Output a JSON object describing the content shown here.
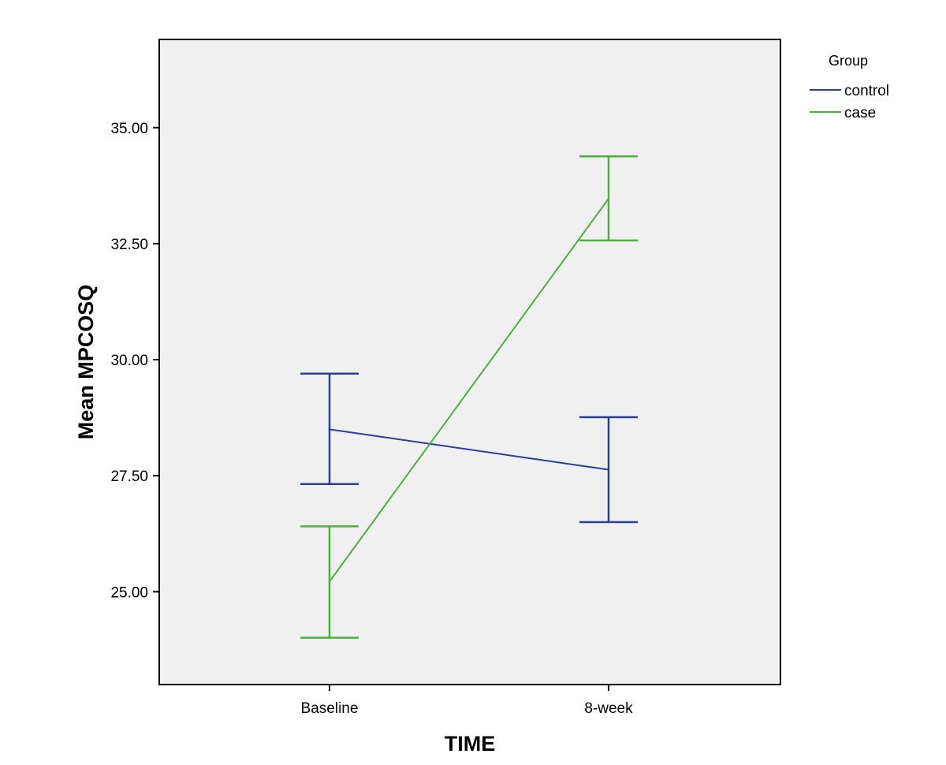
{
  "chart_data": {
    "type": "line",
    "xlabel": "TIME",
    "ylabel": "Mean MPCOSQ",
    "categories": [
      "Baseline",
      "8-week"
    ],
    "ylim": [
      23.0,
      36.9
    ],
    "yticks": [
      25.0,
      27.5,
      30.0,
      32.5,
      35.0
    ],
    "ytick_labels": [
      "25.00",
      "27.50",
      "30.00",
      "32.50",
      "35.00"
    ],
    "grid": false,
    "plot_background": "#f0f0f0",
    "legend": {
      "title": "Group",
      "placement": "outside-top-right"
    },
    "error_bars": true,
    "series": [
      {
        "name": "control",
        "color": "#2a3e95",
        "values": [
          28.5,
          27.63
        ],
        "lower": [
          27.32,
          26.5
        ],
        "upper": [
          29.7,
          28.76
        ]
      },
      {
        "name": "case",
        "color": "#4caf3f",
        "values": [
          25.22,
          33.47
        ],
        "lower": [
          24.01,
          32.57
        ],
        "upper": [
          26.41,
          34.38
        ]
      }
    ]
  }
}
